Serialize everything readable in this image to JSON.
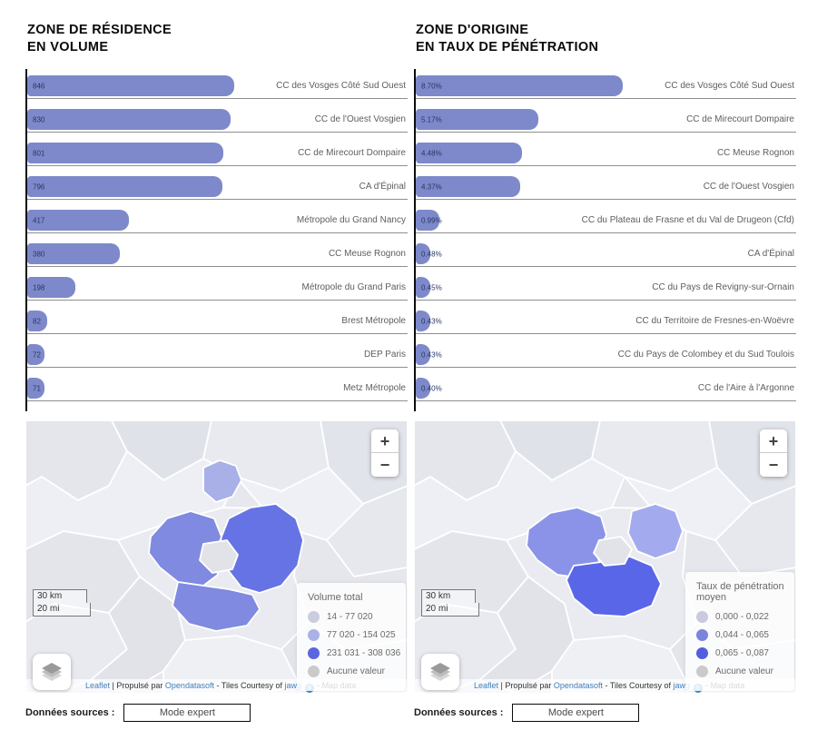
{
  "chart_data": [
    {
      "type": "bar",
      "orientation": "horizontal",
      "title": "ZONE DE RÉSIDENCE EN VOLUME",
      "bar_color": "#7d89ca",
      "categories": [
        "CC des Vosges Côté Sud Ouest",
        "CC de l'Ouest Vosgien",
        "CC de Mirecourt Dompaire",
        "CA d'Épinal",
        "Métropole du Grand Nancy",
        "CC Meuse Rognon",
        "Métropole du Grand Paris",
        "Brest Métropole",
        "DEP Paris",
        "Metz Métropole"
      ],
      "values": [
        846,
        830,
        801,
        796,
        417,
        380,
        198,
        82,
        72,
        71
      ],
      "value_labels": [
        "846",
        "830",
        "801",
        "796",
        "417",
        "380",
        "198",
        "82",
        "72",
        "71"
      ],
      "xlim": [
        0,
        900
      ],
      "grid": false,
      "legend_position": "none"
    },
    {
      "type": "bar",
      "orientation": "horizontal",
      "title": "ZONE D'ORIGINE EN TAUX DE PÉNÉTRATION",
      "bar_color": "#7d89ca",
      "categories": [
        "CC des Vosges Côté Sud Ouest",
        "CC de Mirecourt Dompaire",
        "CC Meuse Rognon",
        "CC de l'Ouest Vosgien",
        "CC du Plateau de Frasne et du Val de Drugeon (Cfd)",
        "CA d'Épinal",
        "CC du Pays de Revigny-sur-Ornain",
        "CC du Territoire de Fresnes-en-Woëvre",
        "CC du Pays de Colombey et du Sud Toulois",
        "CC de l'Aire à l'Argonne"
      ],
      "values": [
        8.7,
        5.17,
        4.48,
        4.37,
        0.99,
        0.48,
        0.45,
        0.43,
        0.43,
        0.4
      ],
      "value_labels": [
        "8.70%",
        "5.17%",
        "4.48%",
        "4.37%",
        "0.99%",
        "0.48%",
        "0.45%",
        "0.43%",
        "0.43%",
        "0.40%"
      ],
      "xlim": [
        0,
        9
      ],
      "grid": false,
      "legend_position": "none"
    }
  ],
  "panels": [
    {
      "title_line1": "ZONE DE RÉSIDENCE",
      "title_line2": "EN VOLUME",
      "map": {
        "legend": {
          "title": "Volume total",
          "items": [
            {
              "label": "14 - 77 020",
              "color": "#c6c9db"
            },
            {
              "label": "77 020 - 154 025",
              "color": "#a3abe2"
            },
            {
              "label": "231 031 - 308 036",
              "color": "#4d59dd"
            },
            {
              "label": "Aucune valeur",
              "color": "#c6c6c6"
            }
          ]
        },
        "region_fills": {
          "light": "#a9b0e8",
          "medium": "#7f8ae0",
          "strong": "#6673e4",
          "hole": "#e2e3e8"
        }
      },
      "footer": {
        "label": "Données sources :",
        "button": "Mode expert"
      }
    },
    {
      "title_line1": "ZONE D'ORIGINE",
      "title_line2": "EN TAUX DE PÉNÉTRATION",
      "map": {
        "legend": {
          "title": "Taux de pénétration moyen",
          "items": [
            {
              "label": "0,000 - 0,022",
              "color": "#c3c7db"
            },
            {
              "label": "0,044 - 0,065",
              "color": "#6f7ad8"
            },
            {
              "label": "0,065 - 0,087",
              "color": "#4450dc"
            },
            {
              "label": "Aucune valeur",
              "color": "#c6c6c6"
            }
          ]
        },
        "region_fills": {
          "light": "#a3abee",
          "medium": "#8a93e8",
          "strong": "#5a66e8",
          "hole": "#e2e3e8"
        }
      },
      "footer": {
        "label": "Données sources :",
        "button": "Mode expert"
      }
    }
  ],
  "map_common": {
    "zoom_in": "+",
    "zoom_out": "−",
    "scale_km": "30 km",
    "scale_mi": "20 mi",
    "attribution": {
      "leaflet": "Leaflet",
      "sep1": " | ",
      "powered": "Propulsé par",
      "ods": "Opendatasoft",
      "sep2": " - ",
      "tiles": "Tiles Courtesy of",
      "jawg": "jawg",
      "sep3": " - ",
      "mapdata": "Map data"
    }
  }
}
